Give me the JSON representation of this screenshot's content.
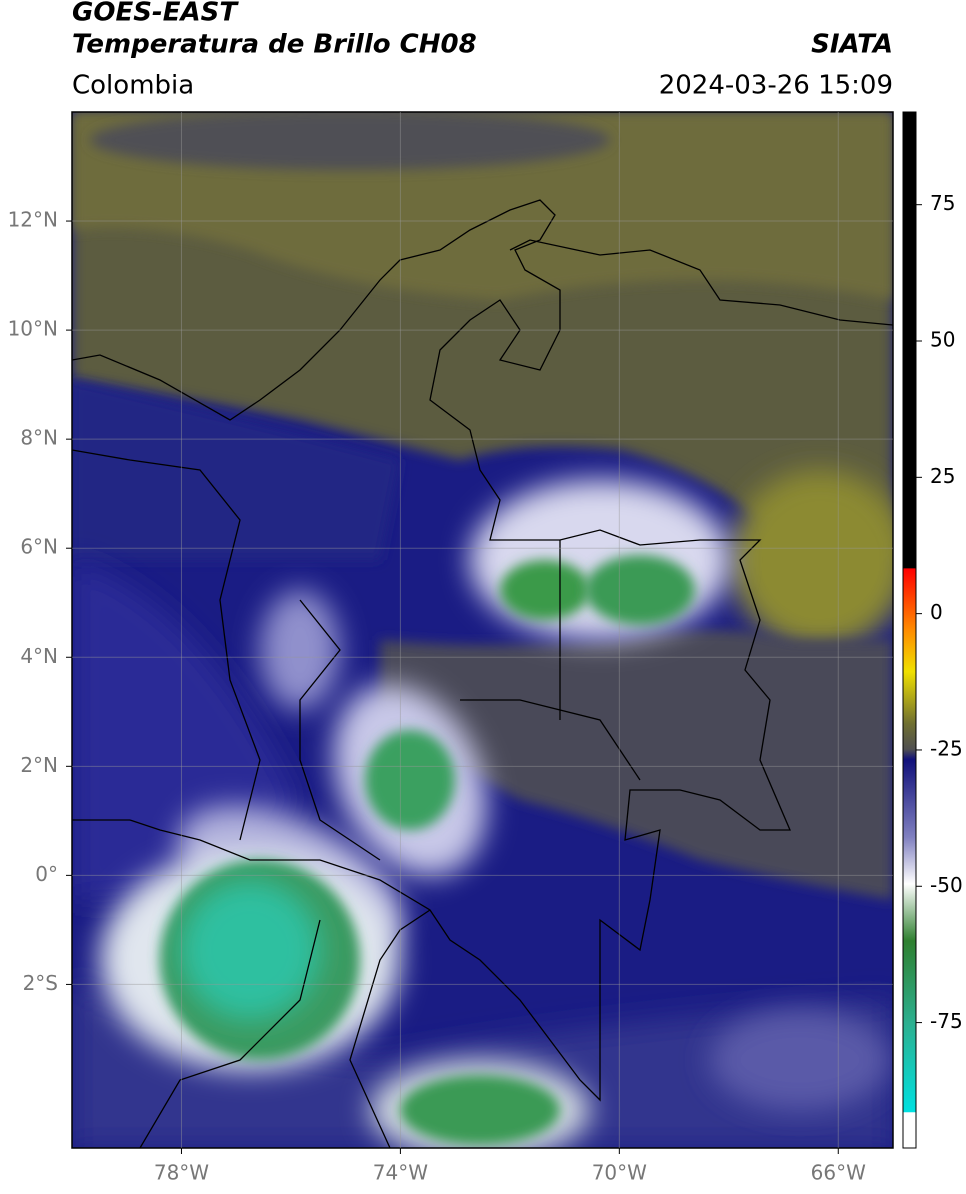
{
  "header": {
    "satellite": "GOES-EAST",
    "product": "Temperatura de Brillo CH08",
    "source": "SIATA",
    "region": "Colombia",
    "datetime": "2024-03-26 15:09"
  },
  "map": {
    "lonlim": [
      -80,
      -65
    ],
    "latlim": [
      -5,
      14
    ],
    "grid": true,
    "lon_ticks": [
      {
        "value": -78,
        "label": "78°W"
      },
      {
        "value": -74,
        "label": "74°W"
      },
      {
        "value": -70,
        "label": "70°W"
      },
      {
        "value": -66,
        "label": "66°W"
      }
    ],
    "lat_ticks": [
      {
        "value": 12,
        "label": "12°N"
      },
      {
        "value": 10,
        "label": "10°N"
      },
      {
        "value": 8,
        "label": "8°N"
      },
      {
        "value": 6,
        "label": "6°N"
      },
      {
        "value": 4,
        "label": "4°N"
      },
      {
        "value": 2,
        "label": "2°N"
      },
      {
        "value": 0,
        "label": "0°"
      },
      {
        "value": -2,
        "label": "2°S"
      }
    ]
  },
  "colorbar": {
    "clim": [
      -98,
      92
    ],
    "ticks": [
      75,
      50,
      25,
      0,
      -25,
      -50,
      -75
    ]
  }
}
